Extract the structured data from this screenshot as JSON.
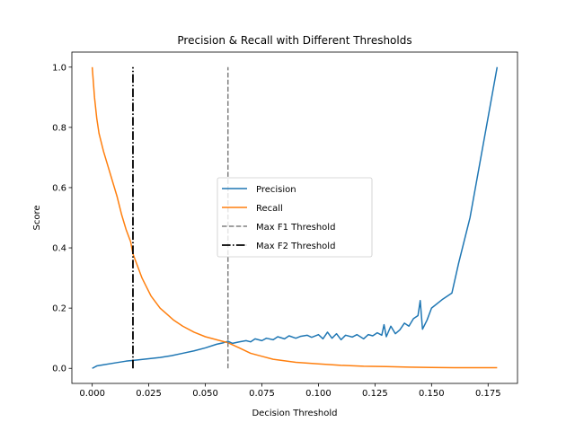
{
  "chart_data": {
    "type": "line",
    "title": "Precision & Recall with Different Thresholds",
    "xlabel": "Decision Threshold",
    "ylabel": "Score",
    "xlim": [
      -0.009,
      0.188
    ],
    "ylim": [
      -0.05,
      1.05
    ],
    "xticks": [
      "0.000",
      "0.025",
      "0.050",
      "0.075",
      "0.100",
      "0.125",
      "0.150",
      "0.175"
    ],
    "xtick_values": [
      0,
      0.025,
      0.05,
      0.075,
      0.1,
      0.125,
      0.15,
      0.175
    ],
    "yticks": [
      "0.0",
      "0.2",
      "0.4",
      "0.6",
      "0.8",
      "1.0"
    ],
    "ytick_values": [
      0,
      0.2,
      0.4,
      0.6,
      0.8,
      1.0
    ],
    "grid": false,
    "legend_position": "center",
    "series": [
      {
        "name": "Precision",
        "color": "#1f77b4",
        "style": "solid",
        "x": [
          0.0,
          0.002,
          0.005,
          0.01,
          0.015,
          0.02,
          0.025,
          0.03,
          0.035,
          0.04,
          0.045,
          0.05,
          0.055,
          0.058,
          0.06,
          0.062,
          0.065,
          0.068,
          0.07,
          0.072,
          0.075,
          0.077,
          0.08,
          0.082,
          0.085,
          0.087,
          0.09,
          0.092,
          0.095,
          0.097,
          0.1,
          0.102,
          0.104,
          0.106,
          0.108,
          0.11,
          0.112,
          0.115,
          0.117,
          0.12,
          0.122,
          0.124,
          0.126,
          0.128,
          0.129,
          0.13,
          0.132,
          0.134,
          0.136,
          0.138,
          0.14,
          0.142,
          0.144,
          0.145,
          0.146,
          0.148,
          0.15,
          0.155,
          0.159,
          0.162,
          0.167,
          0.179
        ],
        "y": [
          0.0,
          0.008,
          0.012,
          0.018,
          0.024,
          0.028,
          0.032,
          0.036,
          0.042,
          0.05,
          0.058,
          0.068,
          0.08,
          0.085,
          0.09,
          0.083,
          0.088,
          0.092,
          0.088,
          0.098,
          0.092,
          0.1,
          0.095,
          0.105,
          0.098,
          0.108,
          0.1,
          0.106,
          0.11,
          0.103,
          0.112,
          0.098,
          0.12,
          0.1,
          0.115,
          0.095,
          0.11,
          0.104,
          0.112,
          0.098,
          0.112,
          0.108,
          0.118,
          0.11,
          0.145,
          0.105,
          0.14,
          0.115,
          0.128,
          0.15,
          0.14,
          0.165,
          0.175,
          0.225,
          0.13,
          0.16,
          0.2,
          0.23,
          0.25,
          0.35,
          0.5,
          1.0
        ]
      },
      {
        "name": "Recall",
        "color": "#ff7f0e",
        "style": "solid",
        "x": [
          0.0,
          0.001,
          0.002,
          0.003,
          0.005,
          0.007,
          0.009,
          0.011,
          0.013,
          0.015,
          0.017,
          0.018,
          0.02,
          0.022,
          0.024,
          0.026,
          0.028,
          0.03,
          0.033,
          0.036,
          0.04,
          0.045,
          0.05,
          0.055,
          0.06,
          0.065,
          0.07,
          0.075,
          0.08,
          0.09,
          0.1,
          0.11,
          0.12,
          0.13,
          0.14,
          0.15,
          0.16,
          0.17,
          0.179
        ],
        "y": [
          1.0,
          0.9,
          0.83,
          0.78,
          0.72,
          0.67,
          0.62,
          0.57,
          0.51,
          0.46,
          0.42,
          0.38,
          0.34,
          0.3,
          0.27,
          0.24,
          0.22,
          0.2,
          0.18,
          0.16,
          0.14,
          0.12,
          0.105,
          0.095,
          0.085,
          0.068,
          0.05,
          0.04,
          0.03,
          0.02,
          0.015,
          0.01,
          0.007,
          0.006,
          0.004,
          0.003,
          0.002,
          0.002,
          0.002
        ]
      },
      {
        "name": "Max F1 Threshold",
        "color": "#808080",
        "style": "dashed",
        "vline_x": 0.06,
        "ymin": 0.0,
        "ymax": 1.0
      },
      {
        "name": "Max F2 Threshold",
        "color": "#000000",
        "style": "dashdot",
        "vline_x": 0.018,
        "ymin": 0.0,
        "ymax": 1.0
      }
    ]
  }
}
